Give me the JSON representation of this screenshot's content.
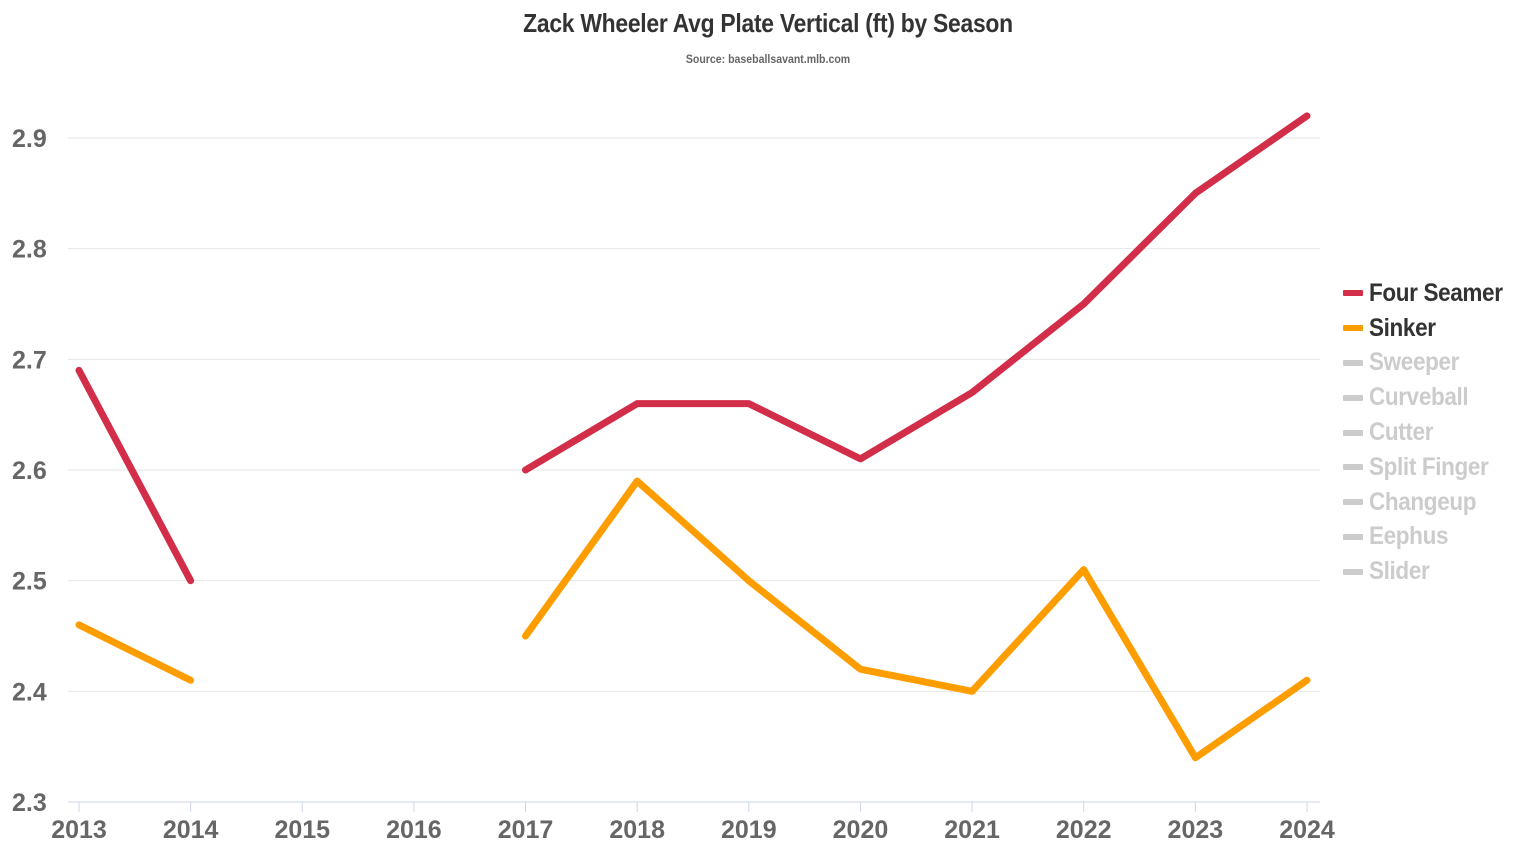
{
  "header": {
    "title": "Zack Wheeler Avg Plate Vertical (ft) by Season",
    "subtitle": "Source: baseballsavant.mlb.com"
  },
  "legend": {
    "items": [
      {
        "label": "Four Seamer",
        "color": "#d22d49",
        "active": true
      },
      {
        "label": "Sinker",
        "color": "#fe9d00",
        "active": true
      },
      {
        "label": "Sweeper",
        "color": "#cccccc",
        "active": false
      },
      {
        "label": "Curveball",
        "color": "#cccccc",
        "active": false
      },
      {
        "label": "Cutter",
        "color": "#cccccc",
        "active": false
      },
      {
        "label": "Split Finger",
        "color": "#cccccc",
        "active": false
      },
      {
        "label": "Changeup",
        "color": "#cccccc",
        "active": false
      },
      {
        "label": "Eephus",
        "color": "#cccccc",
        "active": false
      },
      {
        "label": "Slider",
        "color": "#cccccc",
        "active": false
      }
    ]
  },
  "chart_data": {
    "type": "line",
    "title": "Zack Wheeler Avg Plate Vertical (ft) by Season",
    "subtitle": "Source: baseballsavant.mlb.com",
    "xlabel": "",
    "ylabel": "",
    "x": [
      "2013",
      "2014",
      "2015",
      "2016",
      "2017",
      "2018",
      "2019",
      "2020",
      "2021",
      "2022",
      "2023",
      "2024"
    ],
    "yticks": [
      "2.3",
      "2.4",
      "2.5",
      "2.6",
      "2.7",
      "2.8",
      "2.9"
    ],
    "ylim": [
      2.3,
      2.92
    ],
    "grid": true,
    "legend_position": "right",
    "series": [
      {
        "name": "Four Seamer",
        "color": "#d22d49",
        "values": [
          2.69,
          2.5,
          null,
          null,
          2.6,
          2.66,
          2.66,
          2.61,
          2.67,
          2.75,
          2.85,
          2.92
        ]
      },
      {
        "name": "Sinker",
        "color": "#fe9d00",
        "values": [
          2.46,
          2.41,
          null,
          null,
          2.45,
          2.59,
          2.5,
          2.42,
          2.4,
          2.51,
          2.34,
          2.41
        ]
      },
      {
        "name": "Sweeper",
        "color": "#cccccc",
        "values": [],
        "hidden": true
      },
      {
        "name": "Curveball",
        "color": "#cccccc",
        "values": [],
        "hidden": true
      },
      {
        "name": "Cutter",
        "color": "#cccccc",
        "values": [],
        "hidden": true
      },
      {
        "name": "Split Finger",
        "color": "#cccccc",
        "values": [],
        "hidden": true
      },
      {
        "name": "Changeup",
        "color": "#cccccc",
        "values": [],
        "hidden": true
      },
      {
        "name": "Eephus",
        "color": "#cccccc",
        "values": [],
        "hidden": true
      },
      {
        "name": "Slider",
        "color": "#cccccc",
        "values": [],
        "hidden": true
      }
    ]
  }
}
